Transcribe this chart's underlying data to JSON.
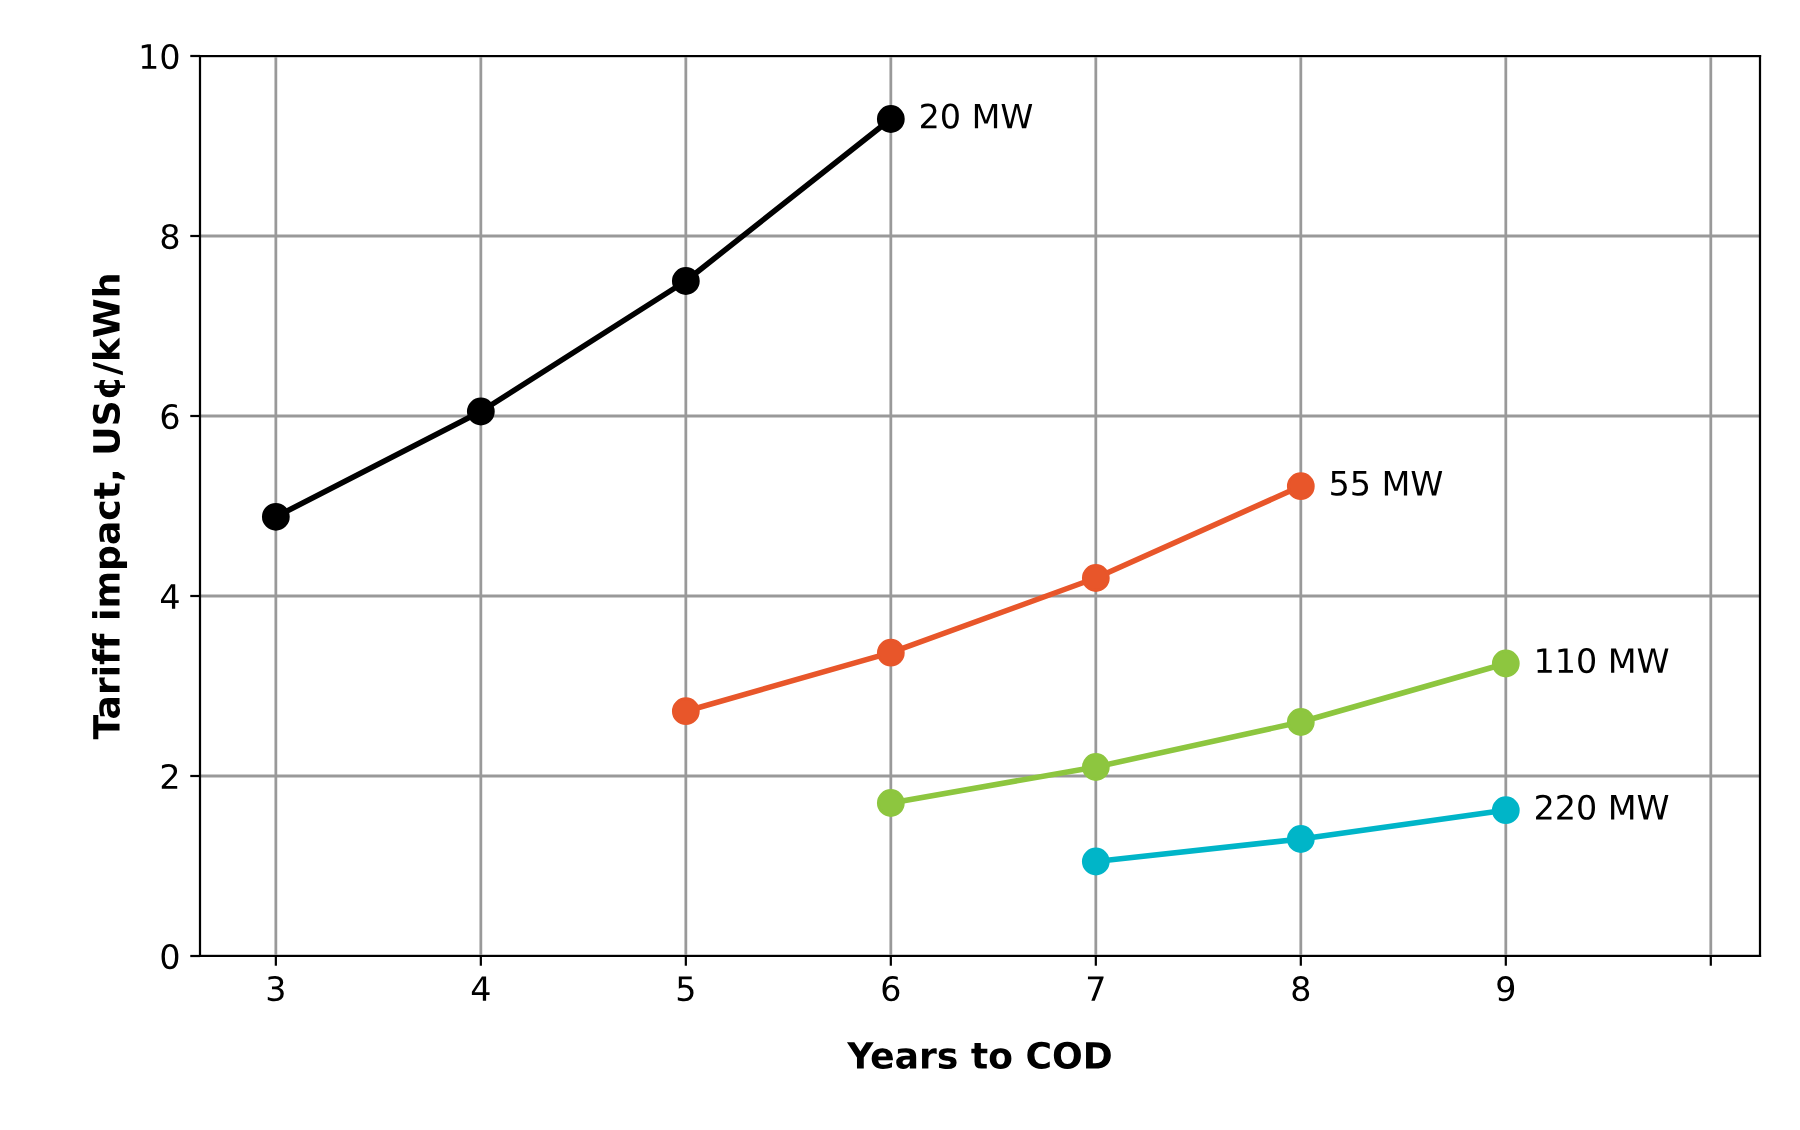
{
  "chart_data": {
    "type": "line",
    "xlabel": "Years to COD",
    "ylabel": "Tariff impact, US¢/kWh",
    "xlim": [
      2.63,
      10.24
    ],
    "xticks": [
      3,
      4,
      5,
      6,
      7,
      8,
      9,
      {
        "value": 10,
        "label": null
      }
    ],
    "ylim": [
      0,
      10
    ],
    "yticks": [
      0,
      2,
      4,
      6,
      8,
      10
    ],
    "grid": true,
    "marker": "circle",
    "line_style": "solid",
    "legend": false,
    "series": [
      {
        "name": "20 MW",
        "color": "#000000",
        "x": [
          3,
          4,
          5,
          6
        ],
        "values": [
          4.88,
          6.05,
          7.5,
          9.3
        ]
      },
      {
        "name": "55 MW",
        "color": "#e8562a",
        "x": [
          5,
          6,
          7,
          8
        ],
        "values": [
          2.72,
          3.37,
          4.2,
          5.22
        ]
      },
      {
        "name": "110 MW",
        "color": "#8dc63f",
        "x": [
          6,
          7,
          8,
          9
        ],
        "values": [
          1.7,
          2.1,
          2.6,
          3.25
        ]
      },
      {
        "name": "220 MW",
        "color": "#00b5c8",
        "x": [
          7,
          8,
          9
        ],
        "values": [
          1.05,
          1.3,
          1.62
        ]
      }
    ]
  }
}
